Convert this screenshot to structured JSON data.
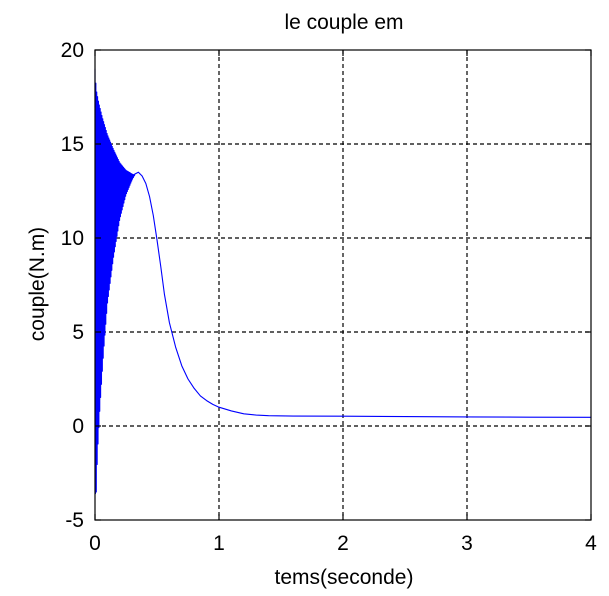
{
  "chart_data": {
    "type": "line",
    "title": "le couple em",
    "xlabel": "tems(seconde)",
    "ylabel": "couple(N.m)",
    "xlim": [
      0,
      4
    ],
    "ylim": [
      -5,
      20
    ],
    "xticks": [
      "0",
      "1",
      "2",
      "3",
      "4"
    ],
    "yticks": [
      "-5",
      "0",
      "5",
      "10",
      "15",
      "20"
    ],
    "grid": true,
    "legend": "none",
    "colors": {
      "series": "#0000ff",
      "grid": "#000000",
      "axes": "#000000",
      "background": "#ffffff"
    },
    "series": [
      {
        "oscillation": {
          "t_start": 0.0,
          "t_end": 0.32,
          "cycles": 46,
          "upper": [
            [
              0.0,
              19.0
            ],
            [
              0.01,
              17.9
            ],
            [
              0.03,
              17.2
            ],
            [
              0.06,
              16.4
            ],
            [
              0.1,
              15.5
            ],
            [
              0.15,
              14.7
            ],
            [
              0.2,
              14.0
            ],
            [
              0.25,
              13.6
            ],
            [
              0.3,
              13.4
            ],
            [
              0.32,
              13.35
            ]
          ],
          "lower": [
            [
              0.0,
              -3.6
            ],
            [
              0.01,
              -3.6
            ],
            [
              0.02,
              -1.5
            ],
            [
              0.04,
              1.0
            ],
            [
              0.07,
              4.0
            ],
            [
              0.1,
              6.5
            ],
            [
              0.15,
              9.0
            ],
            [
              0.2,
              11.0
            ],
            [
              0.25,
              12.3
            ],
            [
              0.3,
              13.1
            ],
            [
              0.32,
              13.35
            ]
          ]
        },
        "points": [
          [
            0.32,
            13.4
          ],
          [
            0.35,
            13.5
          ],
          [
            0.38,
            13.3
          ],
          [
            0.41,
            12.9
          ],
          [
            0.44,
            12.2
          ],
          [
            0.47,
            11.2
          ],
          [
            0.5,
            9.9
          ],
          [
            0.53,
            8.5
          ],
          [
            0.56,
            7.0
          ],
          [
            0.6,
            5.5
          ],
          [
            0.65,
            4.2
          ],
          [
            0.7,
            3.2
          ],
          [
            0.75,
            2.5
          ],
          [
            0.8,
            2.0
          ],
          [
            0.85,
            1.6
          ],
          [
            0.9,
            1.35
          ],
          [
            0.95,
            1.15
          ],
          [
            1.0,
            1.0
          ],
          [
            1.1,
            0.8
          ],
          [
            1.2,
            0.65
          ],
          [
            1.3,
            0.58
          ],
          [
            1.4,
            0.55
          ],
          [
            1.6,
            0.53
          ],
          [
            2.0,
            0.52
          ],
          [
            2.5,
            0.5
          ],
          [
            3.0,
            0.48
          ],
          [
            3.5,
            0.47
          ],
          [
            4.0,
            0.46
          ]
        ]
      }
    ]
  }
}
